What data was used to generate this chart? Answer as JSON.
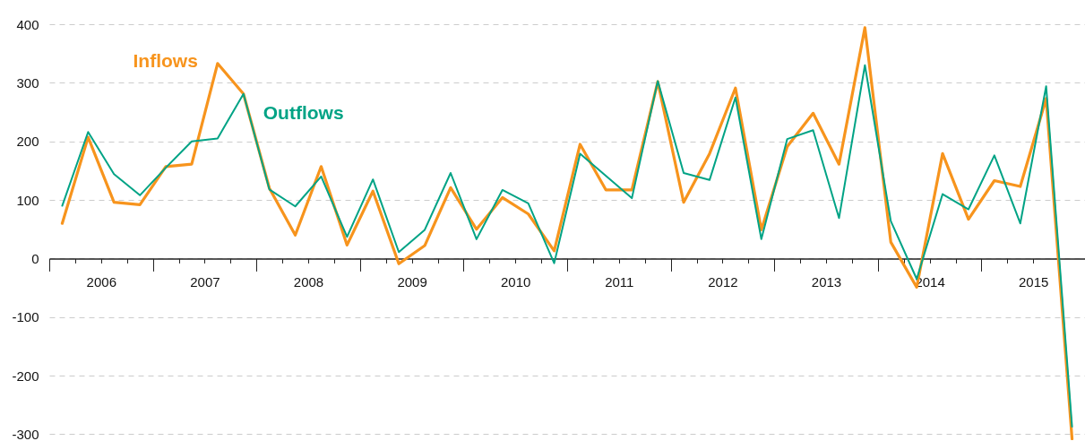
{
  "chart_data": {
    "type": "line",
    "x": [
      2006.125,
      2006.375,
      2006.625,
      2006.875,
      2007.125,
      2007.375,
      2007.625,
      2007.875,
      2008.125,
      2008.375,
      2008.625,
      2008.875,
      2009.125,
      2009.375,
      2009.625,
      2009.875,
      2010.125,
      2010.375,
      2010.625,
      2010.875,
      2011.125,
      2011.375,
      2011.625,
      2011.875,
      2012.125,
      2012.375,
      2012.625,
      2012.875,
      2013.125,
      2013.375,
      2013.625,
      2013.875,
      2014.125,
      2014.375,
      2014.625,
      2014.875,
      2015.125,
      2015.375,
      2015.625,
      2015.875
    ],
    "series": [
      {
        "name": "Inflows",
        "color": "#f7941d",
        "values": [
          60,
          207,
          96,
          92,
          157,
          161,
          333,
          281,
          120,
          40,
          157,
          23,
          115,
          -9,
          22,
          121,
          50,
          104,
          76,
          13,
          195,
          117,
          117,
          302,
          96,
          179,
          291,
          49,
          191,
          248,
          161,
          394,
          28,
          -49,
          179,
          67,
          133,
          123,
          273,
          -308
        ]
      },
      {
        "name": "Outflows",
        "color": "#00a385",
        "values": [
          90,
          216,
          144,
          108,
          155,
          200,
          205,
          281,
          118,
          89,
          140,
          37,
          135,
          11,
          49,
          146,
          33,
          117,
          94,
          -8,
          179,
          141,
          103,
          303,
          146,
          134,
          275,
          33,
          204,
          219,
          69,
          330,
          64,
          -35,
          110,
          84,
          176,
          60,
          294,
          -287
        ]
      }
    ],
    "xlim": [
      2006,
      2016
    ],
    "xticks": [
      {
        "value": 2006,
        "label": null
      },
      {
        "value": 2006.25,
        "label": null
      },
      {
        "value": 2006.5,
        "label": "2006"
      },
      {
        "value": 2006.75,
        "label": null
      },
      {
        "value": 2007,
        "label": null
      },
      {
        "value": 2007.25,
        "label": null
      },
      {
        "value": 2007.5,
        "label": "2007"
      },
      {
        "value": 2007.75,
        "label": null
      },
      {
        "value": 2008,
        "label": null
      },
      {
        "value": 2008.25,
        "label": null
      },
      {
        "value": 2008.5,
        "label": "2008"
      },
      {
        "value": 2008.75,
        "label": null
      },
      {
        "value": 2009,
        "label": null
      },
      {
        "value": 2009.25,
        "label": null
      },
      {
        "value": 2009.5,
        "label": "2009"
      },
      {
        "value": 2009.75,
        "label": null
      },
      {
        "value": 2010,
        "label": null
      },
      {
        "value": 2010.25,
        "label": null
      },
      {
        "value": 2010.5,
        "label": "2010"
      },
      {
        "value": 2010.75,
        "label": null
      },
      {
        "value": 2011,
        "label": null
      },
      {
        "value": 2011.25,
        "label": null
      },
      {
        "value": 2011.5,
        "label": "2011"
      },
      {
        "value": 2011.75,
        "label": null
      },
      {
        "value": 2012,
        "label": null
      },
      {
        "value": 2012.25,
        "label": null
      },
      {
        "value": 2012.5,
        "label": "2012"
      },
      {
        "value": 2012.75,
        "label": null
      },
      {
        "value": 2013,
        "label": null
      },
      {
        "value": 2013.25,
        "label": null
      },
      {
        "value": 2013.5,
        "label": "2013"
      },
      {
        "value": 2013.75,
        "label": null
      },
      {
        "value": 2014,
        "label": null
      },
      {
        "value": 2014.25,
        "label": null
      },
      {
        "value": 2014.5,
        "label": "2014"
      },
      {
        "value": 2014.75,
        "label": null
      },
      {
        "value": 2015,
        "label": null
      },
      {
        "value": 2015.25,
        "label": null
      },
      {
        "value": 2015.5,
        "label": "2015"
      },
      {
        "value": 2015.75,
        "label": null
      },
      {
        "value": 2016,
        "label": null
      }
    ],
    "ylim": [
      -310,
      400
    ],
    "yticks": [
      -300,
      -200,
      -100,
      0,
      100,
      200,
      300,
      400
    ],
    "grid": "y",
    "marker": "none",
    "line_style": "solid",
    "legend": false
  }
}
